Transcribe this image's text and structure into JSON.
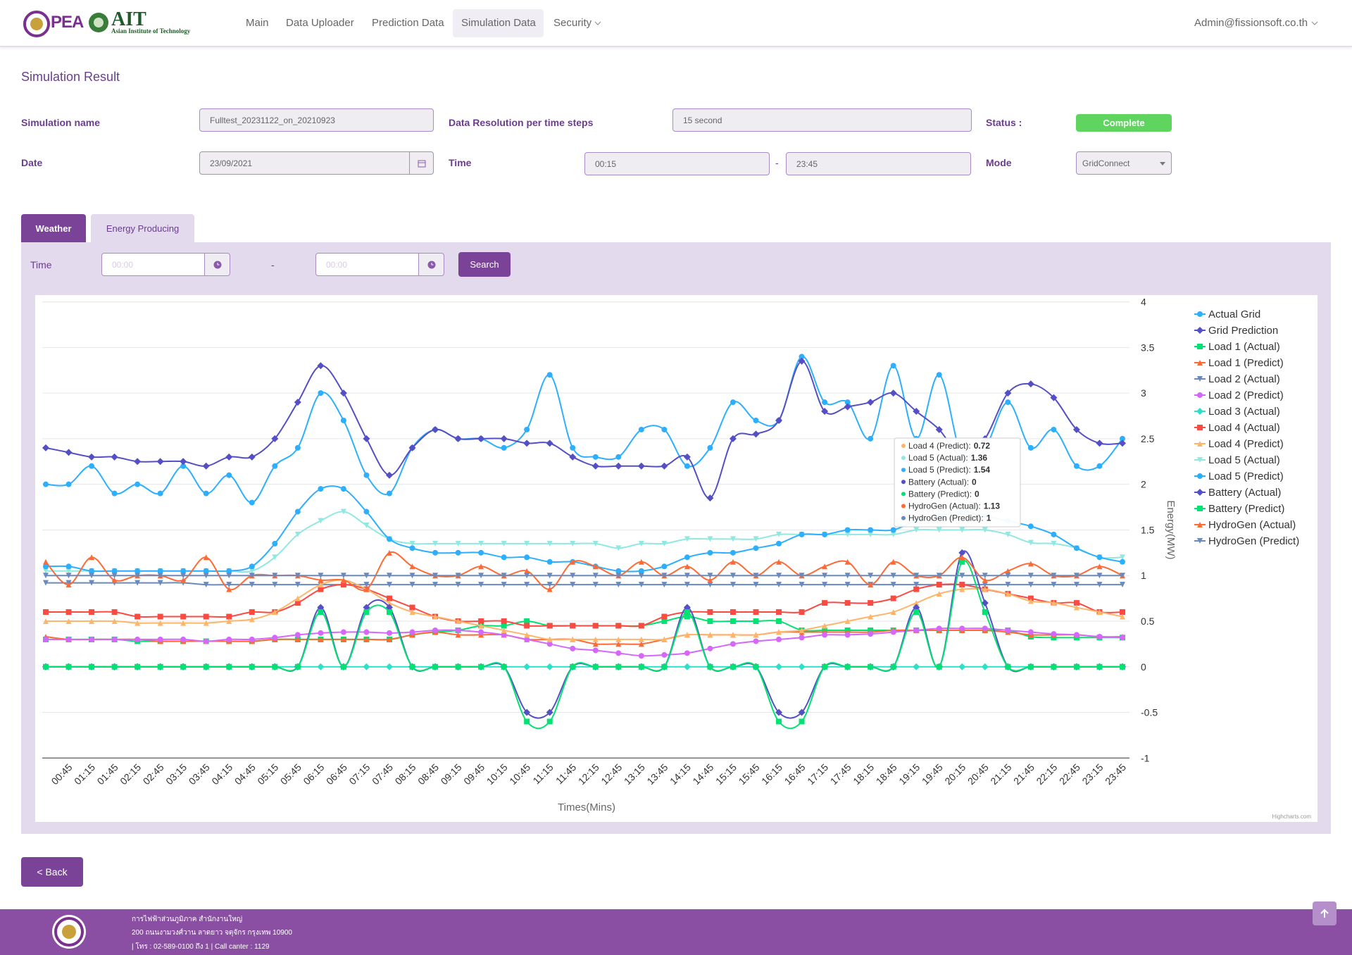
{
  "header": {
    "logo_pea": "PEA",
    "logo_ait": "AIT",
    "logo_ait_sub": "Asian Institute of Technology",
    "nav": [
      "Main",
      "Data Uploader",
      "Prediction Data",
      "Simulation Data",
      "Security"
    ],
    "user": "Admin@fissionsoft.co.th"
  },
  "page_title": "Simulation Result",
  "form": {
    "simulation_name_label": "Simulation name",
    "simulation_name": "Fulltest_20231122_on_20210923",
    "resolution_label": "Data Resolution per time steps",
    "resolution": "15 second",
    "status_label": "Status :",
    "status": "Complete",
    "date_label": "Date",
    "date": "23/09/2021",
    "time_label": "Time",
    "time_start": "00:15",
    "time_separator": "-",
    "time_end": "23:45",
    "mode_label": "Mode",
    "mode": "GridConnect"
  },
  "tabs": [
    "Weather",
    "Energy Producing"
  ],
  "filter": {
    "time_label": "Time",
    "start_placeholder": "00:00",
    "separator": "-",
    "end_placeholder": "00:00",
    "search": "Search"
  },
  "chart_data": {
    "type": "line",
    "x_label": "Times(Mins)",
    "y_label": "Energy(MW)",
    "credit": "Highcharts.com",
    "categories": [
      null,
      "00:45",
      "01:15",
      "01:45",
      "02:15",
      "02:45",
      "03:15",
      "03:45",
      "04:15",
      "04:45",
      "05:15",
      "05:45",
      "06:15",
      "06:45",
      "07:15",
      "07:45",
      "08:15",
      "08:45",
      "09:15",
      "09:45",
      "10:15",
      "10:45",
      "11:15",
      "11:45",
      "12:15",
      "12:45",
      "13:15",
      "13:45",
      "14:15",
      "14:45",
      "15:15",
      "15:45",
      "16:15",
      "16:45",
      "17:15",
      "17:45",
      "18:15",
      "18:45",
      "19:15",
      "19:45",
      "20:15",
      "20:45",
      "21:15",
      "21:45",
      "22:15",
      "22:45",
      "23:15",
      "23:45"
    ],
    "ylim": [
      -1,
      4
    ],
    "yticks": [
      -1,
      -0.5,
      0,
      0.5,
      1,
      1.5,
      2,
      2.5,
      3,
      3.5,
      4
    ],
    "grid": true,
    "legend": "right",
    "series": [
      {
        "name": "Actual Grid",
        "color": "#2caffe",
        "values": [
          2.0,
          2.0,
          2.2,
          1.9,
          2.0,
          1.9,
          2.2,
          1.9,
          2.1,
          1.8,
          2.2,
          2.4,
          3.0,
          2.7,
          2.1,
          1.9,
          2.4,
          2.6,
          2.5,
          2.5,
          2.4,
          2.6,
          3.2,
          2.4,
          2.3,
          2.3,
          2.6,
          2.6,
          2.2,
          2.4,
          2.9,
          2.7,
          2.7,
          3.4,
          2.9,
          2.9,
          2.5,
          3.3,
          2.5,
          3.2,
          2.3,
          2.4,
          2.9,
          2.4,
          2.6,
          2.2,
          2.2,
          2.5
        ]
      },
      {
        "name": "Grid Prediction",
        "color": "#544fc5",
        "values": [
          2.4,
          2.35,
          2.3,
          2.3,
          2.25,
          2.25,
          2.25,
          2.2,
          2.3,
          2.3,
          2.5,
          2.9,
          3.3,
          3.0,
          2.5,
          2.1,
          2.4,
          2.6,
          2.5,
          2.5,
          2.5,
          2.45,
          2.45,
          2.3,
          2.2,
          2.2,
          2.2,
          2.2,
          2.3,
          1.85,
          2.5,
          2.55,
          2.7,
          3.35,
          2.8,
          2.85,
          2.9,
          3.0,
          2.8,
          2.6,
          2.3,
          2.5,
          3.0,
          3.1,
          2.95,
          2.6,
          2.45,
          2.45
        ]
      },
      {
        "name": "Load 1 (Actual)",
        "color": "#00e272",
        "values": [
          0.3,
          0.3,
          0.3,
          0.3,
          0.28,
          0.28,
          0.28,
          0.28,
          0.28,
          0.28,
          0.3,
          0.3,
          0.3,
          0.3,
          0.3,
          0.3,
          0.35,
          0.38,
          0.4,
          0.45,
          0.45,
          0.5,
          0.45,
          0.45,
          0.45,
          0.45,
          0.45,
          0.5,
          0.55,
          0.5,
          0.5,
          0.5,
          0.5,
          0.4,
          0.4,
          0.4,
          0.4,
          0.4,
          0.4,
          0.4,
          0.4,
          0.4,
          0.4,
          0.33,
          0.32,
          0.32,
          0.32,
          0.32
        ]
      },
      {
        "name": "Load 1 (Predict)",
        "color": "#fe6a35",
        "values": [
          0.33,
          0.3,
          0.3,
          0.3,
          0.3,
          0.28,
          0.28,
          0.28,
          0.28,
          0.28,
          0.3,
          0.3,
          0.3,
          0.3,
          0.3,
          0.3,
          0.35,
          0.38,
          0.35,
          0.35,
          0.35,
          0.3,
          0.3,
          0.3,
          0.25,
          0.25,
          0.25,
          0.3,
          0.35,
          0.35,
          0.35,
          0.35,
          0.38,
          0.38,
          0.38,
          0.38,
          0.38,
          0.4,
          0.4,
          0.4,
          0.4,
          0.4,
          0.38,
          0.35,
          0.35,
          0.35,
          0.33,
          0.33
        ]
      },
      {
        "name": "Load 2 (Actual)",
        "color": "#6b8abc",
        "values": [
          0.92,
          0.92,
          0.92,
          0.92,
          0.92,
          0.92,
          0.92,
          0.9,
          0.9,
          0.9,
          0.9,
          0.9,
          0.9,
          0.9,
          0.9,
          0.9,
          0.9,
          0.9,
          0.9,
          0.9,
          0.9,
          0.9,
          0.9,
          0.9,
          0.9,
          0.9,
          0.9,
          0.9,
          0.9,
          0.9,
          0.9,
          0.9,
          0.9,
          0.9,
          0.9,
          0.9,
          0.9,
          0.9,
          0.9,
          0.9,
          0.9,
          0.9,
          0.9,
          0.9,
          0.9,
          0.9,
          0.9,
          0.9
        ]
      },
      {
        "name": "Load 2 (Predict)",
        "color": "#d568fb",
        "values": [
          0.3,
          0.3,
          0.3,
          0.3,
          0.3,
          0.3,
          0.3,
          0.28,
          0.3,
          0.3,
          0.32,
          0.35,
          0.37,
          0.38,
          0.38,
          0.37,
          0.38,
          0.4,
          0.4,
          0.38,
          0.35,
          0.3,
          0.25,
          0.2,
          0.18,
          0.15,
          0.12,
          0.13,
          0.15,
          0.2,
          0.25,
          0.28,
          0.3,
          0.32,
          0.35,
          0.35,
          0.36,
          0.38,
          0.4,
          0.42,
          0.42,
          0.42,
          0.4,
          0.38,
          0.36,
          0.35,
          0.33,
          0.32
        ]
      },
      {
        "name": "Load 3 (Actual)",
        "color": "#2ee0ca",
        "values": [
          0,
          0,
          0,
          0,
          0,
          0,
          0,
          0,
          0,
          0,
          0,
          0,
          0,
          0,
          0,
          0,
          0,
          0,
          0,
          0,
          0,
          0,
          0,
          0,
          0,
          0,
          0,
          0,
          0,
          0,
          0,
          0,
          0,
          0,
          0,
          0,
          0,
          0,
          0,
          0,
          0,
          0,
          0,
          0,
          0,
          0,
          0,
          0
        ]
      },
      {
        "name": "Load 4 (Actual)",
        "color": "#fa4b42",
        "values": [
          0.6,
          0.6,
          0.6,
          0.6,
          0.55,
          0.55,
          0.55,
          0.55,
          0.55,
          0.6,
          0.6,
          0.7,
          0.85,
          0.9,
          0.85,
          0.75,
          0.65,
          0.55,
          0.5,
          0.5,
          0.5,
          0.45,
          0.45,
          0.45,
          0.45,
          0.45,
          0.45,
          0.55,
          0.6,
          0.6,
          0.6,
          0.6,
          0.6,
          0.6,
          0.7,
          0.7,
          0.7,
          0.75,
          0.85,
          0.9,
          0.9,
          0.85,
          0.8,
          0.75,
          0.7,
          0.7,
          0.6,
          0.6
        ]
      },
      {
        "name": "Load 4 (Predict)",
        "color": "#feb56a",
        "values": [
          0.5,
          0.5,
          0.5,
          0.5,
          0.48,
          0.48,
          0.48,
          0.48,
          0.5,
          0.52,
          0.6,
          0.75,
          0.9,
          0.95,
          0.85,
          0.7,
          0.6,
          0.55,
          0.5,
          0.45,
          0.4,
          0.35,
          0.3,
          0.3,
          0.3,
          0.3,
          0.3,
          0.3,
          0.35,
          0.35,
          0.35,
          0.35,
          0.38,
          0.4,
          0.45,
          0.5,
          0.55,
          0.6,
          0.7,
          0.8,
          0.85,
          0.85,
          0.8,
          0.72,
          0.7,
          0.65,
          0.6,
          0.55
        ]
      },
      {
        "name": "Load 5 (Actual)",
        "color": "#91e8e1",
        "values": [
          1.05,
          1.05,
          1.05,
          1.05,
          1.05,
          1.05,
          1.05,
          1.05,
          1.05,
          1.05,
          1.2,
          1.45,
          1.6,
          1.7,
          1.55,
          1.4,
          1.35,
          1.35,
          1.35,
          1.35,
          1.35,
          1.35,
          1.35,
          1.35,
          1.35,
          1.3,
          1.35,
          1.35,
          1.4,
          1.4,
          1.4,
          1.4,
          1.45,
          1.45,
          1.45,
          1.45,
          1.45,
          1.45,
          1.5,
          1.5,
          1.5,
          1.5,
          1.45,
          1.36,
          1.35,
          1.3,
          1.2,
          1.2
        ]
      },
      {
        "name": "Load 5 (Predict)",
        "color": "#2caffe",
        "values": [
          1.1,
          1.1,
          1.05,
          1.05,
          1.05,
          1.05,
          1.05,
          1.05,
          1.05,
          1.1,
          1.35,
          1.7,
          1.95,
          1.95,
          1.7,
          1.4,
          1.3,
          1.25,
          1.25,
          1.25,
          1.2,
          1.2,
          1.15,
          1.15,
          1.1,
          1.05,
          1.05,
          1.1,
          1.2,
          1.25,
          1.25,
          1.3,
          1.35,
          1.45,
          1.45,
          1.5,
          1.5,
          1.5,
          1.6,
          1.65,
          1.7,
          1.65,
          1.6,
          1.54,
          1.45,
          1.3,
          1.2,
          1.15
        ]
      },
      {
        "name": "Battery (Actual)",
        "color": "#544fc5",
        "values": [
          0,
          0,
          0,
          0,
          0,
          0,
          0,
          0,
          0,
          0,
          0,
          0,
          0.65,
          0,
          0.65,
          0.65,
          0,
          0,
          0,
          0,
          0,
          -0.5,
          -0.5,
          0,
          0,
          0,
          0,
          0,
          0.65,
          0,
          0,
          0,
          -0.5,
          -0.5,
          0,
          0,
          0,
          0,
          0.65,
          0,
          1.25,
          0.7,
          0,
          0,
          0,
          0,
          0,
          0
        ]
      },
      {
        "name": "Battery (Predict)",
        "color": "#00e272",
        "values": [
          0,
          0,
          0,
          0,
          0,
          0,
          0,
          0,
          0,
          0,
          0,
          0,
          0.6,
          0,
          0.6,
          0.6,
          0,
          0,
          0,
          0,
          0,
          -0.6,
          -0.6,
          0,
          0,
          0,
          0,
          0,
          0.6,
          0,
          0,
          0,
          -0.6,
          -0.6,
          0,
          0,
          0,
          0,
          0.6,
          0,
          1.15,
          0.6,
          0,
          0,
          0,
          0,
          0,
          0
        ]
      },
      {
        "name": "HydroGen (Actual)",
        "color": "#fe6a35",
        "values": [
          1.15,
          0.9,
          1.2,
          0.95,
          1.0,
          1.0,
          0.95,
          1.2,
          0.85,
          1.0,
          1.0,
          1.0,
          0.95,
          0.95,
          0.85,
          1.25,
          1.1,
          1.0,
          1.0,
          1.1,
          1.0,
          1.05,
          0.85,
          1.15,
          1.1,
          1.0,
          1.15,
          1.0,
          1.1,
          0.95,
          1.15,
          1.0,
          1.15,
          1.0,
          1.1,
          1.15,
          0.9,
          1.15,
          1.0,
          1.0,
          1.2,
          0.95,
          1.05,
          1.13,
          1.0,
          1.0,
          1.1,
          1.0
        ]
      },
      {
        "name": "HydroGen (Predict)",
        "color": "#6b8abc",
        "values": [
          1,
          1,
          1,
          1,
          1,
          1,
          1,
          1,
          1,
          1,
          1,
          1,
          1,
          1,
          1,
          1,
          1,
          1,
          1,
          1,
          1,
          1,
          1,
          1,
          1,
          1,
          1,
          1,
          1,
          1,
          1,
          1,
          1,
          1,
          1,
          1,
          1,
          1,
          1,
          1,
          1,
          1,
          1,
          1,
          1,
          1,
          1,
          1
        ]
      }
    ],
    "tooltip": [
      {
        "label": "Load 4 (Predict):",
        "value": 0.72
      },
      {
        "label": "Load 5 (Actual):",
        "value": 1.36
      },
      {
        "label": "Load 5 (Predict):",
        "value": 1.54
      },
      {
        "label": "Battery (Actual):",
        "value": 0
      },
      {
        "label": "Battery (Predict):",
        "value": 0
      },
      {
        "label": "HydroGen (Actual):",
        "value": 1.13
      },
      {
        "label": "HydroGen (Predict):",
        "value": 1
      }
    ]
  },
  "back": "< Back",
  "footer": {
    "line1": "การไฟฟ้าส่วนภูมิภาค สำนักงานใหญ่",
    "line2": "200 ถนนงามวงศ์วาน ลาดยาว จตุจักร กรุงเทพ 10900",
    "line3": "| โทร : 02-589-0100 ถึง 1 | Call canter : 1129"
  }
}
